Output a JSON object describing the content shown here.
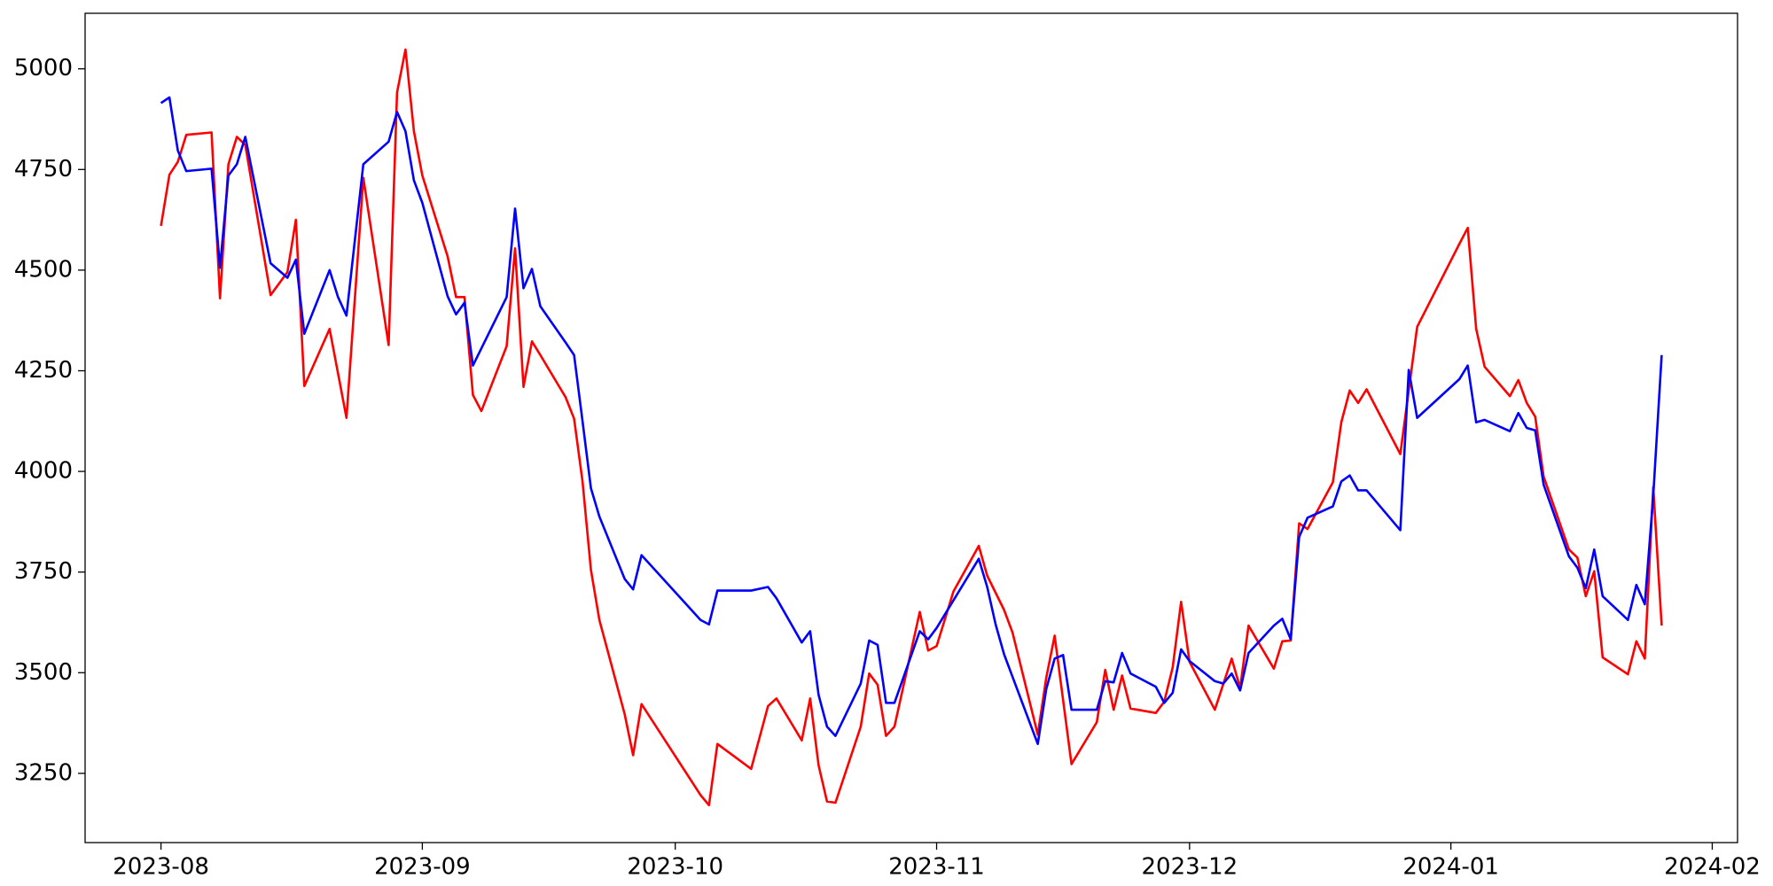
{
  "chart_data": {
    "type": "line",
    "series": [
      {
        "color": "red",
        "x": [
          0,
          1,
          2,
          3,
          6,
          7,
          8,
          9,
          10,
          13,
          15,
          16,
          17,
          20,
          22,
          24,
          27,
          28,
          29,
          30,
          31,
          34,
          35,
          36,
          37,
          38,
          41,
          42,
          43,
          44,
          45,
          48,
          49,
          50,
          51,
          52,
          55,
          56,
          57,
          64,
          65,
          66,
          70,
          72,
          73,
          76,
          77,
          78,
          79,
          80,
          83,
          84,
          85,
          86,
          87,
          90,
          91,
          92,
          94,
          97,
          98,
          100,
          101,
          104,
          105,
          106,
          108,
          111,
          112,
          113,
          114,
          115,
          118,
          119,
          120,
          121,
          122,
          125,
          127,
          128,
          129,
          132,
          133,
          134,
          135,
          136,
          139,
          140,
          141,
          142,
          143,
          147,
          149,
          154,
          155,
          156,
          157,
          160,
          161,
          162,
          163,
          164,
          167,
          168,
          169,
          170,
          171,
          174,
          175,
          176,
          177,
          178
        ],
        "values": [
          4610,
          4737,
          4769,
          4836,
          4842,
          4430,
          4763,
          4831,
          4811,
          4438,
          4495,
          4625,
          4212,
          4354,
          4133,
          4729,
          4314,
          4941,
          5048,
          4845,
          4735,
          4534,
          4433,
          4433,
          4190,
          4150,
          4311,
          4554,
          4210,
          4323,
          4289,
          4184,
          4131,
          3975,
          3755,
          3631,
          3397,
          3295,
          3422,
          3196,
          3171,
          3323,
          3261,
          3417,
          3436,
          3332,
          3436,
          3270,
          3180,
          3177,
          3366,
          3498,
          3470,
          3343,
          3366,
          3651,
          3555,
          3566,
          3702,
          3815,
          3741,
          3656,
          3600,
          3346,
          3487,
          3592,
          3273,
          3377,
          3507,
          3408,
          3493,
          3411,
          3400,
          3428,
          3513,
          3676,
          3527,
          3408,
          3535,
          3462,
          3617,
          3510,
          3578,
          3580,
          3871,
          3857,
          3973,
          4122,
          4201,
          4170,
          4204,
          4043,
          4359,
          4565,
          4605,
          4354,
          4260,
          4187,
          4227,
          4170,
          4136,
          3987,
          3806,
          3786,
          3690,
          3752,
          3538,
          3496,
          3578,
          3535,
          3961,
          3617
        ]
      },
      {
        "color": "blue",
        "x": [
          0,
          1,
          2,
          3,
          6,
          7,
          8,
          9,
          10,
          13,
          15,
          16,
          17,
          20,
          21,
          22,
          24,
          27,
          28,
          29,
          30,
          31,
          34,
          35,
          36,
          37,
          41,
          42,
          43,
          44,
          45,
          48,
          49,
          50,
          51,
          52,
          55,
          56,
          57,
          64,
          65,
          66,
          70,
          72,
          73,
          76,
          77,
          78,
          79,
          80,
          83,
          84,
          85,
          86,
          87,
          90,
          91,
          92,
          97,
          98,
          99,
          100,
          101,
          104,
          105,
          106,
          107,
          108,
          111,
          112,
          113,
          114,
          115,
          118,
          119,
          120,
          121,
          122,
          125,
          126,
          127,
          128,
          129,
          132,
          133,
          134,
          135,
          136,
          139,
          140,
          141,
          142,
          143,
          147,
          148,
          149,
          154,
          155,
          156,
          157,
          160,
          161,
          162,
          163,
          164,
          167,
          168,
          169,
          170,
          171,
          174,
          175,
          176,
          177,
          178
        ],
        "values": [
          4915,
          4929,
          4797,
          4746,
          4752,
          4506,
          4735,
          4763,
          4831,
          4517,
          4481,
          4526,
          4342,
          4500,
          4433,
          4387,
          4763,
          4819,
          4893,
          4845,
          4723,
          4667,
          4435,
          4390,
          4419,
          4263,
          4433,
          4653,
          4455,
          4503,
          4410,
          4320,
          4289,
          4125,
          3958,
          3888,
          3733,
          3707,
          3792,
          3631,
          3620,
          3704,
          3704,
          3713,
          3685,
          3575,
          3603,
          3445,
          3366,
          3343,
          3473,
          3580,
          3569,
          3425,
          3425,
          3603,
          3583,
          3611,
          3783,
          3713,
          3620,
          3546,
          3490,
          3323,
          3459,
          3535,
          3544,
          3408,
          3408,
          3479,
          3476,
          3549,
          3498,
          3465,
          3425,
          3450,
          3558,
          3529,
          3479,
          3473,
          3498,
          3456,
          3549,
          3617,
          3634,
          3583,
          3837,
          3885,
          3913,
          3975,
          3990,
          3953,
          3953,
          3854,
          4252,
          4133,
          4229,
          4263,
          4122,
          4128,
          4100,
          4145,
          4108,
          4102,
          3967,
          3789,
          3761,
          3710,
          3806,
          3690,
          3631,
          3718,
          3670,
          3939,
          4289
        ]
      }
    ],
    "xlim": [
      -9,
      187
    ],
    "xticks": [
      {
        "value": 0,
        "label": "2023-08"
      },
      {
        "value": 31,
        "label": "2023-09"
      },
      {
        "value": 61,
        "label": "2023-10"
      },
      {
        "value": 92,
        "label": "2023-11"
      },
      {
        "value": 122,
        "label": "2023-12"
      },
      {
        "value": 153,
        "label": "2024-01"
      },
      {
        "value": 184,
        "label": "2024-02"
      }
    ],
    "ylim": [
      3078,
      5138
    ],
    "yticks": [
      3250,
      3500,
      3750,
      4000,
      4250,
      4500,
      4750,
      5000
    ],
    "grid": false
  }
}
